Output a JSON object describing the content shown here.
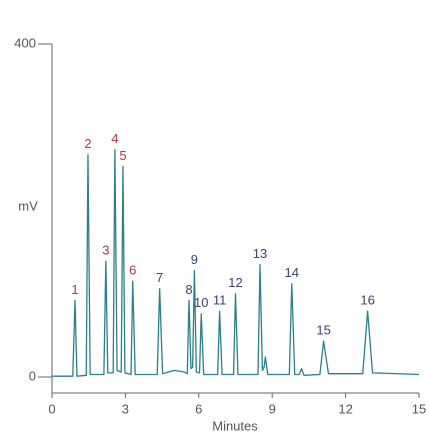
{
  "chart_data": {
    "type": "line",
    "xlabel": "Minutes",
    "ylabel": "mV",
    "xlim": [
      0,
      15
    ],
    "xticks": [
      0,
      3,
      6,
      9,
      12,
      15
    ],
    "ylim": [
      0,
      400
    ],
    "yticks": [
      0,
      400
    ],
    "series": [
      {
        "color": "#2a7f8a",
        "x": [
          0,
          0.85,
          0.94,
          1.02,
          1.4,
          1.47,
          1.56,
          2.12,
          2.2,
          2.28,
          2.5,
          2.57,
          2.66,
          2.83,
          2.9,
          2.98,
          3.23,
          3.3,
          3.4,
          4.3,
          4.4,
          4.52,
          5.0,
          5.4,
          5.53,
          5.6,
          5.68,
          5.75,
          5.82,
          5.9,
          6.03,
          6.1,
          6.2,
          6.77,
          6.85,
          6.95,
          7.42,
          7.5,
          7.6,
          8.42,
          8.5,
          8.6,
          8.67,
          8.72,
          8.82,
          9.7,
          9.8,
          9.92,
          10.1,
          10.2,
          10.3,
          10.95,
          11.1,
          11.3,
          12.7,
          12.9,
          13.1,
          15
        ],
        "values": [
          1,
          1,
          92,
          1,
          2,
          267,
          3,
          3,
          139,
          5,
          5,
          273,
          8,
          6,
          253,
          5,
          3,
          115,
          3,
          3,
          106,
          4,
          8,
          6,
          4,
          92,
          10,
          12,
          128,
          6,
          5,
          76,
          3,
          3,
          79,
          3,
          3,
          100,
          3,
          3,
          135,
          8,
          12,
          24,
          3,
          3,
          112,
          3,
          3,
          10,
          2,
          3,
          43,
          4,
          4,
          79,
          5,
          3
        ]
      }
    ],
    "peaks": [
      {
        "label": "1",
        "time": 0.94,
        "height": 92,
        "color": "#b5333f"
      },
      {
        "label": "2",
        "time": 1.47,
        "height": 267,
        "color": "#b5333f"
      },
      {
        "label": "3",
        "time": 2.2,
        "height": 139,
        "color": "#b5333f"
      },
      {
        "label": "4",
        "time": 2.57,
        "height": 273,
        "color": "#b5333f"
      },
      {
        "label": "5",
        "time": 2.9,
        "height": 253,
        "color": "#b5333f"
      },
      {
        "label": "6",
        "time": 3.3,
        "height": 115,
        "color": "#b5333f"
      },
      {
        "label": "7",
        "time": 4.4,
        "height": 106,
        "color": "#3a3f6e"
      },
      {
        "label": "8",
        "time": 5.6,
        "height": 92,
        "color": "#3a3f6e"
      },
      {
        "label": "9",
        "time": 5.82,
        "height": 128,
        "color": "#3a3f6e"
      },
      {
        "label": "10",
        "time": 6.1,
        "height": 76,
        "color": "#3a3f6e"
      },
      {
        "label": "11",
        "time": 6.85,
        "height": 79,
        "color": "#3a3f6e"
      },
      {
        "label": "12",
        "time": 7.5,
        "height": 100,
        "color": "#3a3f6e"
      },
      {
        "label": "13",
        "time": 8.5,
        "height": 135,
        "color": "#3a3f6e"
      },
      {
        "label": "14",
        "time": 9.8,
        "height": 112,
        "color": "#3a3f6e"
      },
      {
        "label": "15",
        "time": 11.1,
        "height": 43,
        "color": "#3a3f6e"
      },
      {
        "label": "16",
        "time": 12.9,
        "height": 79,
        "color": "#3a3f6e"
      }
    ]
  }
}
